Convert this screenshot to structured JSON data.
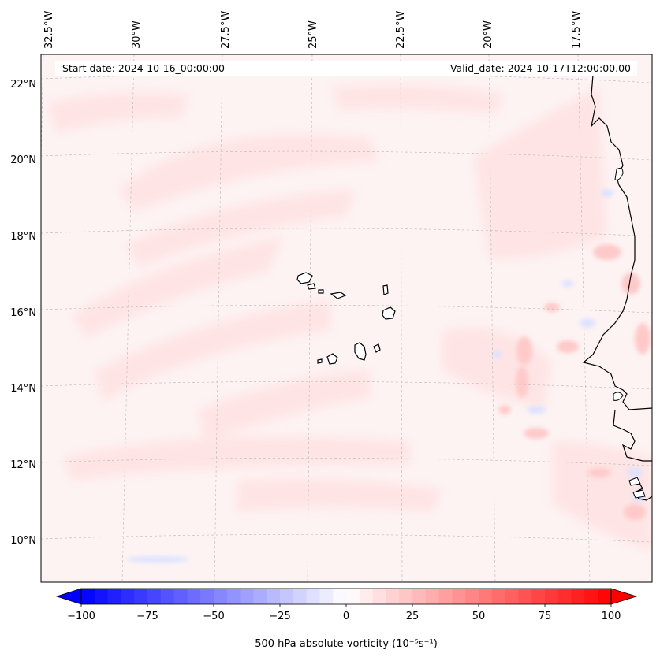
{
  "header": {
    "start_date": "Start date: 2024-10-16_00:00:00",
    "valid_date": "Valid_date: 2024-10-17T12:00:00.00"
  },
  "map": {
    "lon_labels": [
      "32.5°W",
      "30°W",
      "27.5°W",
      "25°W",
      "22.5°W",
      "20°W",
      "17.5°W"
    ],
    "lat_labels": [
      "22°N",
      "20°N",
      "18°N",
      "16°N",
      "14°N",
      "12°N",
      "10°N"
    ],
    "gridlines": "dashed",
    "colors": {
      "background": "#fdf3f3",
      "positive_shade": "#ffdede",
      "negative_shade": "#e4e8ff",
      "coastline": "#000000"
    }
  },
  "colorbar": {
    "label": "500 hPa absolute vorticity (10⁻⁵s⁻¹)",
    "tick_labels": [
      "−100",
      "−75",
      "−50",
      "−25",
      "0",
      "25",
      "50",
      "75",
      "100"
    ],
    "min": -100,
    "max": 100,
    "colormap": "bwr",
    "extend": "both"
  }
}
